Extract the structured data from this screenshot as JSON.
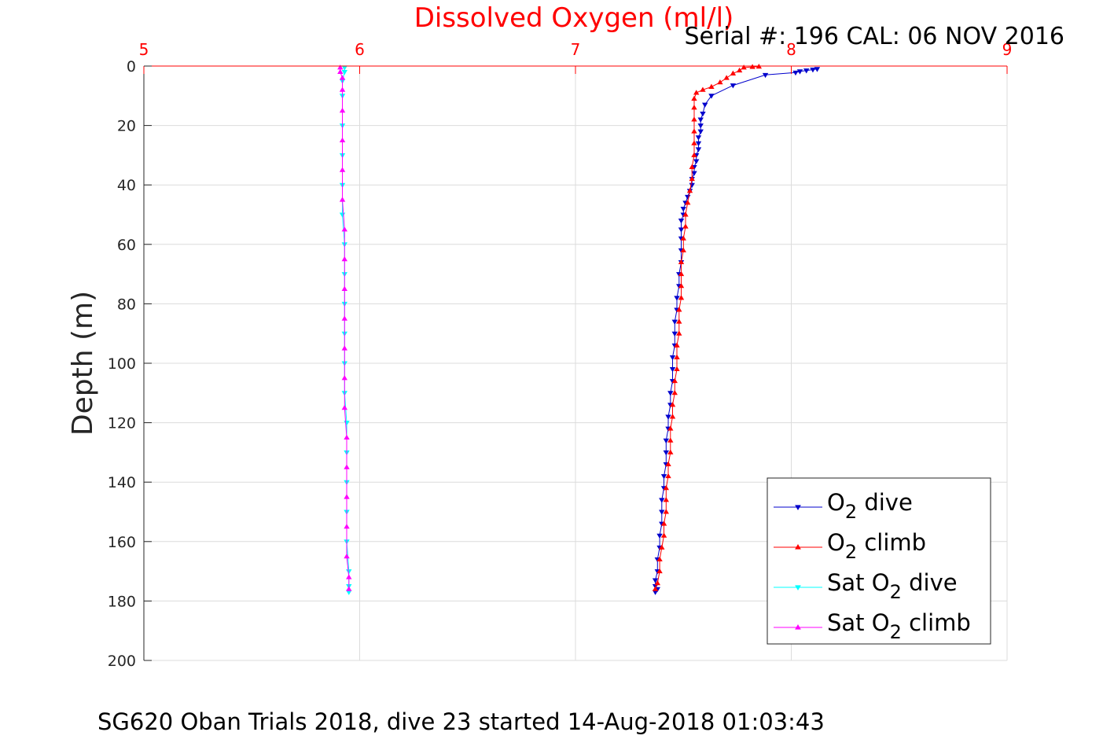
{
  "chart_data": {
    "type": "line",
    "title": "Dissolved Oxygen (ml/l)",
    "subtitle": "Serial #: 196  CAL: 06 NOV 2016",
    "footer": "SG620 Oban Trials 2018, dive 23 started 14-Aug-2018 01:03:43",
    "xlabel": "",
    "ylabel": "Depth (m)",
    "xlim": [
      5,
      9
    ],
    "ylim": [
      0,
      200
    ],
    "y_reversed": true,
    "x_axis_position": "top",
    "x_ticks": [
      "5",
      "6",
      "7",
      "8",
      "9"
    ],
    "y_ticks": [
      "0",
      "20",
      "40",
      "60",
      "80",
      "100",
      "120",
      "140",
      "160",
      "180",
      "200"
    ],
    "grid": true,
    "legend_position": "bottom-right",
    "colors": {
      "title": "#ff0000",
      "x_ticks": "#ff0000",
      "axes": "#262626",
      "grid": "#dcdcdc"
    },
    "series": [
      {
        "legend": [
          "O",
          "2",
          " dive"
        ],
        "color": "#0000cc",
        "marker": "triangle-down",
        "points": [
          [
            8.12,
            1
          ],
          [
            8.1,
            1.2
          ],
          [
            8.07,
            1.5
          ],
          [
            8.04,
            1.8
          ],
          [
            8.02,
            2.2
          ],
          [
            7.88,
            3
          ],
          [
            7.73,
            6.5
          ],
          [
            7.63,
            10
          ],
          [
            7.6,
            13
          ],
          [
            7.59,
            16
          ],
          [
            7.58,
            18
          ],
          [
            7.58,
            20
          ],
          [
            7.58,
            22
          ],
          [
            7.57,
            24
          ],
          [
            7.57,
            26
          ],
          [
            7.57,
            28
          ],
          [
            7.56,
            30
          ],
          [
            7.56,
            32
          ],
          [
            7.55,
            34
          ],
          [
            7.55,
            36
          ],
          [
            7.54,
            38
          ],
          [
            7.54,
            40
          ],
          [
            7.53,
            42
          ],
          [
            7.52,
            44
          ],
          [
            7.51,
            46
          ],
          [
            7.5,
            48
          ],
          [
            7.5,
            50
          ],
          [
            7.49,
            52
          ],
          [
            7.49,
            55
          ],
          [
            7.49,
            58
          ],
          [
            7.49,
            62
          ],
          [
            7.49,
            66
          ],
          [
            7.48,
            70
          ],
          [
            7.48,
            74
          ],
          [
            7.47,
            78
          ],
          [
            7.47,
            82
          ],
          [
            7.46,
            86
          ],
          [
            7.46,
            90
          ],
          [
            7.46,
            94
          ],
          [
            7.45,
            98
          ],
          [
            7.45,
            102
          ],
          [
            7.45,
            106
          ],
          [
            7.44,
            110
          ],
          [
            7.44,
            114
          ],
          [
            7.43,
            118
          ],
          [
            7.43,
            122
          ],
          [
            7.42,
            126
          ],
          [
            7.42,
            130
          ],
          [
            7.42,
            134
          ],
          [
            7.41,
            138
          ],
          [
            7.41,
            142
          ],
          [
            7.4,
            146
          ],
          [
            7.4,
            150
          ],
          [
            7.4,
            154
          ],
          [
            7.39,
            158
          ],
          [
            7.39,
            162
          ],
          [
            7.38,
            166
          ],
          [
            7.38,
            170
          ],
          [
            7.37,
            173
          ],
          [
            7.37,
            175
          ],
          [
            7.38,
            176
          ],
          [
            7.37,
            177
          ]
        ]
      },
      {
        "legend": [
          "O",
          "2",
          " climb"
        ],
        "color": "#ff0000",
        "marker": "triangle-up",
        "points": [
          [
            7.37,
            176
          ],
          [
            7.38,
            174
          ],
          [
            7.39,
            170
          ],
          [
            7.39,
            166
          ],
          [
            7.4,
            162
          ],
          [
            7.41,
            158
          ],
          [
            7.41,
            154
          ],
          [
            7.42,
            150
          ],
          [
            7.42,
            146
          ],
          [
            7.42,
            142
          ],
          [
            7.43,
            138
          ],
          [
            7.43,
            134
          ],
          [
            7.44,
            130
          ],
          [
            7.44,
            126
          ],
          [
            7.44,
            122
          ],
          [
            7.45,
            118
          ],
          [
            7.45,
            114
          ],
          [
            7.46,
            110
          ],
          [
            7.46,
            106
          ],
          [
            7.47,
            102
          ],
          [
            7.47,
            98
          ],
          [
            7.47,
            94
          ],
          [
            7.48,
            90
          ],
          [
            7.48,
            86
          ],
          [
            7.48,
            82
          ],
          [
            7.49,
            78
          ],
          [
            7.49,
            74
          ],
          [
            7.49,
            70
          ],
          [
            7.49,
            66
          ],
          [
            7.5,
            62
          ],
          [
            7.5,
            58
          ],
          [
            7.51,
            54
          ],
          [
            7.51,
            50
          ],
          [
            7.52,
            46
          ],
          [
            7.53,
            42
          ],
          [
            7.54,
            38
          ],
          [
            7.54,
            34
          ],
          [
            7.55,
            30
          ],
          [
            7.55,
            26
          ],
          [
            7.55,
            22
          ],
          [
            7.55,
            18
          ],
          [
            7.55,
            14
          ],
          [
            7.55,
            11
          ],
          [
            7.56,
            9
          ],
          [
            7.59,
            8
          ],
          [
            7.63,
            7
          ],
          [
            7.67,
            5.5
          ],
          [
            7.7,
            4
          ],
          [
            7.73,
            2.5
          ],
          [
            7.76,
            1.5
          ],
          [
            7.78,
            0.5
          ],
          [
            7.82,
            0.3
          ],
          [
            7.85,
            0.2
          ]
        ]
      },
      {
        "legend": [
          "Sat O",
          "2",
          " dive"
        ],
        "color": "#00ffff",
        "marker": "triangle-down",
        "points": [
          [
            5.93,
            0.5
          ],
          [
            5.93,
            2
          ],
          [
            5.92,
            5
          ],
          [
            5.92,
            10
          ],
          [
            5.92,
            20
          ],
          [
            5.92,
            30
          ],
          [
            5.92,
            40
          ],
          [
            5.92,
            50
          ],
          [
            5.93,
            60
          ],
          [
            5.93,
            70
          ],
          [
            5.93,
            80
          ],
          [
            5.93,
            90
          ],
          [
            5.93,
            100
          ],
          [
            5.93,
            110
          ],
          [
            5.94,
            120
          ],
          [
            5.94,
            130
          ],
          [
            5.94,
            140
          ],
          [
            5.94,
            150
          ],
          [
            5.94,
            160
          ],
          [
            5.95,
            170
          ],
          [
            5.95,
            175
          ],
          [
            5.95,
            177
          ]
        ]
      },
      {
        "legend": [
          "Sat O",
          "2",
          " climb"
        ],
        "color": "#ff00ff",
        "marker": "triangle-up",
        "points": [
          [
            5.95,
            176
          ],
          [
            5.95,
            172
          ],
          [
            5.94,
            165
          ],
          [
            5.94,
            155
          ],
          [
            5.94,
            145
          ],
          [
            5.94,
            135
          ],
          [
            5.94,
            125
          ],
          [
            5.93,
            115
          ],
          [
            5.93,
            105
          ],
          [
            5.93,
            95
          ],
          [
            5.93,
            85
          ],
          [
            5.93,
            75
          ],
          [
            5.93,
            65
          ],
          [
            5.93,
            55
          ],
          [
            5.92,
            45
          ],
          [
            5.92,
            35
          ],
          [
            5.92,
            25
          ],
          [
            5.92,
            15
          ],
          [
            5.92,
            8
          ],
          [
            5.92,
            4
          ],
          [
            5.91,
            2
          ],
          [
            5.91,
            0.5
          ]
        ]
      }
    ]
  }
}
